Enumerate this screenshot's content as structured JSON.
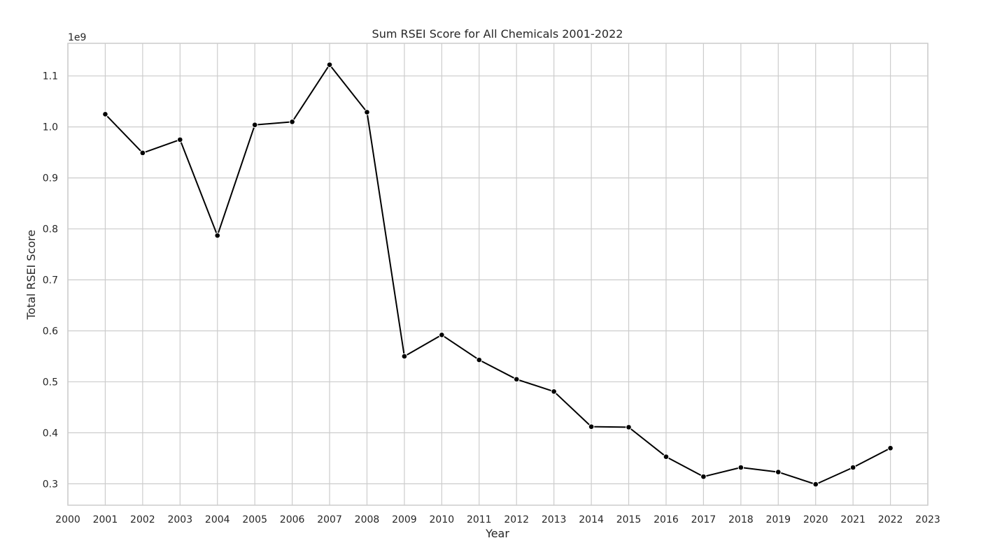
{
  "chart_data": {
    "type": "line",
    "title": "Sum RSEI Score for All Chemicals 2001-2022",
    "xlabel": "Year",
    "ylabel": "Total RSEI Score",
    "y_offset_label": "1e9",
    "y_multiplier": 1000000000,
    "xlim": [
      2000,
      2023
    ],
    "ylim": [
      0.258,
      1.164
    ],
    "x_ticks": [
      2000,
      2001,
      2002,
      2003,
      2004,
      2005,
      2006,
      2007,
      2008,
      2009,
      2010,
      2011,
      2012,
      2013,
      2014,
      2015,
      2016,
      2017,
      2018,
      2019,
      2020,
      2021,
      2022,
      2023
    ],
    "y_ticks": [
      0.3,
      0.4,
      0.5,
      0.6,
      0.7,
      0.8,
      0.9,
      1.0,
      1.1
    ],
    "y_tick_labels": [
      "0.3",
      "0.4",
      "0.5",
      "0.6",
      "0.7",
      "0.8",
      "0.9",
      "1.0",
      "1.1"
    ],
    "grid": true,
    "color": "#000000",
    "x": [
      2001,
      2002,
      2003,
      2004,
      2005,
      2006,
      2007,
      2008,
      2009,
      2010,
      2011,
      2012,
      2013,
      2014,
      2015,
      2016,
      2017,
      2018,
      2019,
      2020,
      2021,
      2022
    ],
    "y": [
      1.025,
      0.949,
      0.975,
      0.787,
      1.004,
      1.01,
      1.122,
      1.029,
      0.55,
      0.592,
      0.543,
      0.505,
      0.481,
      0.412,
      0.411,
      0.353,
      0.314,
      0.332,
      0.323,
      0.299,
      0.332,
      0.37
    ]
  }
}
